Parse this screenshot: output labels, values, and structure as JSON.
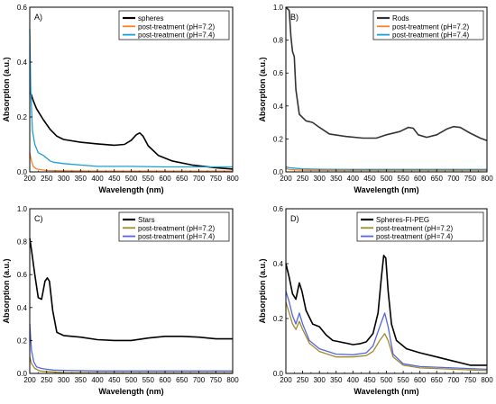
{
  "chart_data": [
    {
      "type": "line",
      "panel_label": "A)",
      "xlabel": "Wavelength (nm)",
      "ylabel": "Absorption (a.u.)",
      "xlim": [
        200,
        800
      ],
      "ylim": [
        0,
        0.6
      ],
      "x_ticks": [
        "200",
        "250",
        "300",
        "350",
        "400",
        "450",
        "500",
        "550",
        "600",
        "650",
        "700",
        "750",
        "800"
      ],
      "y_ticks": [
        "0.0",
        "0.2",
        "0.4",
        "0.6"
      ],
      "y_tick_values": [
        0,
        0.2,
        0.4,
        0.6
      ],
      "legend_position": "top-right",
      "grid": false,
      "series": [
        {
          "name": "spheres",
          "color": "#000000",
          "points": [
            [
              200,
              0.29
            ],
            [
              205,
              0.28
            ],
            [
              210,
              0.26
            ],
            [
              220,
              0.23
            ],
            [
              240,
              0.19
            ],
            [
              260,
              0.155
            ],
            [
              280,
              0.13
            ],
            [
              300,
              0.118
            ],
            [
              350,
              0.108
            ],
            [
              400,
              0.102
            ],
            [
              450,
              0.097
            ],
            [
              480,
              0.1
            ],
            [
              500,
              0.115
            ],
            [
              515,
              0.135
            ],
            [
              525,
              0.142
            ],
            [
              535,
              0.13
            ],
            [
              550,
              0.095
            ],
            [
              580,
              0.06
            ],
            [
              620,
              0.04
            ],
            [
              680,
              0.025
            ],
            [
              750,
              0.015
            ],
            [
              800,
              0.01
            ]
          ]
        },
        {
          "name": "post-treatment (pH=7.2)",
          "color": "#ff7f2a",
          "points": [
            [
              200,
              0.07
            ],
            [
              205,
              0.04
            ],
            [
              210,
              0.02
            ],
            [
              220,
              0.01
            ],
            [
              250,
              0.005
            ],
            [
              300,
              0.004
            ],
            [
              400,
              0.003
            ],
            [
              500,
              0.003
            ],
            [
              600,
              0.003
            ],
            [
              700,
              0.003
            ],
            [
              800,
              0.003
            ]
          ]
        },
        {
          "name": "post-treatment (pH=7.4)",
          "color": "#1a9fd6",
          "points": [
            [
              200,
              0.52
            ],
            [
              203,
              0.3
            ],
            [
              208,
              0.15
            ],
            [
              215,
              0.1
            ],
            [
              225,
              0.07
            ],
            [
              240,
              0.06
            ],
            [
              250,
              0.05
            ],
            [
              260,
              0.04
            ],
            [
              270,
              0.035
            ],
            [
              300,
              0.03
            ],
            [
              350,
              0.025
            ],
            [
              400,
              0.02
            ],
            [
              450,
              0.02
            ],
            [
              500,
              0.02
            ],
            [
              600,
              0.018
            ],
            [
              700,
              0.018
            ],
            [
              800,
              0.018
            ]
          ]
        }
      ]
    },
    {
      "type": "line",
      "panel_label": "B)",
      "xlabel": "Wavelength (nm)",
      "ylabel": "Absorption (a.u.)",
      "xlim": [
        200,
        800
      ],
      "ylim": [
        0,
        1.0
      ],
      "x_ticks": [
        "200",
        "250",
        "300",
        "350",
        "400",
        "450",
        "500",
        "550",
        "600",
        "650",
        "700",
        "750",
        "800"
      ],
      "y_ticks": [
        "0.0",
        "0.2",
        "0.4",
        "0.6",
        "0.8",
        "1.0"
      ],
      "y_tick_values": [
        0,
        0.2,
        0.4,
        0.6,
        0.8,
        1.0
      ],
      "legend_position": "top-right",
      "grid": false,
      "series": [
        {
          "name": "Rods",
          "color": "#333333",
          "points": [
            [
              200,
              1.0
            ],
            [
              210,
              0.98
            ],
            [
              215,
              0.82
            ],
            [
              220,
              0.73
            ],
            [
              225,
              0.7
            ],
            [
              230,
              0.5
            ],
            [
              240,
              0.35
            ],
            [
              260,
              0.31
            ],
            [
              280,
              0.3
            ],
            [
              300,
              0.27
            ],
            [
              330,
              0.23
            ],
            [
              380,
              0.215
            ],
            [
              430,
              0.205
            ],
            [
              470,
              0.205
            ],
            [
              500,
              0.225
            ],
            [
              540,
              0.245
            ],
            [
              565,
              0.27
            ],
            [
              580,
              0.265
            ],
            [
              595,
              0.225
            ],
            [
              620,
              0.21
            ],
            [
              650,
              0.225
            ],
            [
              680,
              0.26
            ],
            [
              700,
              0.275
            ],
            [
              720,
              0.27
            ],
            [
              750,
              0.235
            ],
            [
              780,
              0.205
            ],
            [
              800,
              0.19
            ]
          ]
        },
        {
          "name": "post-treatment (pH=7.2)",
          "color": "#ff7f2a",
          "points": [
            [
              200,
              0.02
            ],
            [
              210,
              0.015
            ],
            [
              250,
              0.01
            ],
            [
              400,
              0.008
            ],
            [
              600,
              0.008
            ],
            [
              800,
              0.008
            ]
          ]
        },
        {
          "name": "post-treatment (pH=7.4)",
          "color": "#1a9fd6",
          "points": [
            [
              200,
              0.03
            ],
            [
              210,
              0.025
            ],
            [
              250,
              0.018
            ],
            [
              300,
              0.016
            ],
            [
              400,
              0.015
            ],
            [
              500,
              0.015
            ],
            [
              600,
              0.015
            ],
            [
              700,
              0.015
            ],
            [
              800,
              0.015
            ]
          ]
        }
      ]
    },
    {
      "type": "line",
      "panel_label": "C)",
      "xlabel": "Wavelength (nm)",
      "ylabel": "Absorption (a.u.)",
      "xlim": [
        200,
        800
      ],
      "ylim": [
        0,
        1.0
      ],
      "x_ticks": [
        "200",
        "250",
        "300",
        "350",
        "400",
        "450",
        "500",
        "550",
        "600",
        "650",
        "700",
        "750",
        "800"
      ],
      "y_ticks": [
        "0.0",
        "0.2",
        "0.4",
        "0.6",
        "0.8",
        "1.0"
      ],
      "y_tick_values": [
        0,
        0.2,
        0.4,
        0.6,
        0.8,
        1.0
      ],
      "legend_position": "top-right",
      "grid": false,
      "series": [
        {
          "name": "Stars",
          "color": "#000000",
          "points": [
            [
              200,
              0.82
            ],
            [
              205,
              0.75
            ],
            [
              215,
              0.6
            ],
            [
              225,
              0.46
            ],
            [
              235,
              0.45
            ],
            [
              245,
              0.56
            ],
            [
              252,
              0.58
            ],
            [
              258,
              0.56
            ],
            [
              268,
              0.38
            ],
            [
              280,
              0.25
            ],
            [
              300,
              0.23
            ],
            [
              350,
              0.22
            ],
            [
              400,
              0.205
            ],
            [
              450,
              0.2
            ],
            [
              500,
              0.2
            ],
            [
              550,
              0.215
            ],
            [
              600,
              0.225
            ],
            [
              650,
              0.225
            ],
            [
              700,
              0.22
            ],
            [
              750,
              0.21
            ],
            [
              800,
              0.21
            ]
          ]
        },
        {
          "name": "post-treatment (pH=7.2)",
          "color": "#a08a2a",
          "points": [
            [
              200,
              0.1
            ],
            [
              205,
              0.06
            ],
            [
              215,
              0.03
            ],
            [
              230,
              0.015
            ],
            [
              260,
              0.01
            ],
            [
              300,
              0.005
            ],
            [
              400,
              0.004
            ],
            [
              600,
              0.004
            ],
            [
              800,
              0.004
            ]
          ]
        },
        {
          "name": "post-treatment (pH=7.4)",
          "color": "#5566dd",
          "points": [
            [
              200,
              0.3
            ],
            [
              205,
              0.14
            ],
            [
              212,
              0.07
            ],
            [
              220,
              0.04
            ],
            [
              235,
              0.03
            ],
            [
              250,
              0.025
            ],
            [
              270,
              0.02
            ],
            [
              300,
              0.018
            ],
            [
              400,
              0.015
            ],
            [
              500,
              0.015
            ],
            [
              600,
              0.015
            ],
            [
              800,
              0.015
            ]
          ]
        }
      ]
    },
    {
      "type": "line",
      "panel_label": "D)",
      "xlabel": "Wavelength (nm)",
      "ylabel": "Absorption (a.u.)",
      "xlim": [
        200,
        800
      ],
      "ylim": [
        0,
        0.6
      ],
      "x_ticks": [
        "200",
        "250",
        "300",
        "350",
        "400",
        "450",
        "500",
        "550",
        "600",
        "650",
        "700",
        "750",
        "800"
      ],
      "y_ticks": [
        "0.0",
        "0.2",
        "0.4",
        "0.6"
      ],
      "y_tick_values": [
        0,
        0.2,
        0.4,
        0.6
      ],
      "legend_position": "top-right",
      "grid": false,
      "series": [
        {
          "name": "Spheres-FI-PEG",
          "color": "#000000",
          "points": [
            [
              200,
              0.4
            ],
            [
              210,
              0.35
            ],
            [
              220,
              0.29
            ],
            [
              230,
              0.27
            ],
            [
              240,
              0.33
            ],
            [
              248,
              0.3
            ],
            [
              260,
              0.23
            ],
            [
              280,
              0.18
            ],
            [
              300,
              0.17
            ],
            [
              320,
              0.14
            ],
            [
              340,
              0.12
            ],
            [
              360,
              0.115
            ],
            [
              380,
              0.11
            ],
            [
              400,
              0.105
            ],
            [
              420,
              0.108
            ],
            [
              440,
              0.115
            ],
            [
              460,
              0.145
            ],
            [
              475,
              0.22
            ],
            [
              485,
              0.35
            ],
            [
              492,
              0.43
            ],
            [
              498,
              0.42
            ],
            [
              505,
              0.3
            ],
            [
              515,
              0.18
            ],
            [
              530,
              0.12
            ],
            [
              560,
              0.09
            ],
            [
              600,
              0.075
            ],
            [
              650,
              0.06
            ],
            [
              700,
              0.045
            ],
            [
              750,
              0.03
            ],
            [
              800,
              0.03
            ]
          ]
        },
        {
          "name": "post-treatment (pH=7.2)",
          "color": "#a08a2a",
          "points": [
            [
              200,
              0.26
            ],
            [
              210,
              0.22
            ],
            [
              220,
              0.18
            ],
            [
              230,
              0.16
            ],
            [
              240,
              0.19
            ],
            [
              250,
              0.16
            ],
            [
              270,
              0.11
            ],
            [
              300,
              0.08
            ],
            [
              350,
              0.06
            ],
            [
              400,
              0.06
            ],
            [
              440,
              0.065
            ],
            [
              460,
              0.08
            ],
            [
              480,
              0.12
            ],
            [
              495,
              0.145
            ],
            [
              505,
              0.12
            ],
            [
              520,
              0.06
            ],
            [
              550,
              0.03
            ],
            [
              600,
              0.02
            ],
            [
              700,
              0.015
            ],
            [
              800,
              0.01
            ]
          ]
        },
        {
          "name": "post-treatment (pH=7.4)",
          "color": "#5566dd",
          "points": [
            [
              200,
              0.3
            ],
            [
              210,
              0.26
            ],
            [
              220,
              0.21
            ],
            [
              230,
              0.18
            ],
            [
              240,
              0.22
            ],
            [
              250,
              0.18
            ],
            [
              270,
              0.12
            ],
            [
              300,
              0.09
            ],
            [
              350,
              0.07
            ],
            [
              400,
              0.068
            ],
            [
              440,
              0.075
            ],
            [
              460,
              0.1
            ],
            [
              480,
              0.17
            ],
            [
              495,
              0.22
            ],
            [
              505,
              0.17
            ],
            [
              520,
              0.07
            ],
            [
              550,
              0.035
            ],
            [
              600,
              0.025
            ],
            [
              700,
              0.02
            ],
            [
              800,
              0.015
            ]
          ]
        }
      ]
    }
  ]
}
